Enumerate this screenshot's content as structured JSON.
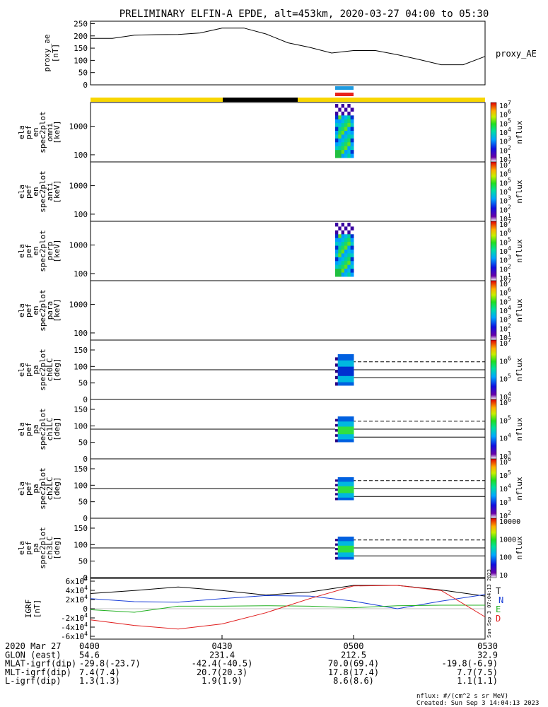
{
  "title": "PRELIMINARY ELFIN-A EPDE, alt=453km, 2020-03-27 04:00 to 05:30",
  "colors": {
    "bar_yellow": "#f8d600",
    "bar_black": "#000000",
    "bar_blue": "#1f9be0",
    "bar_red": "#e8231a",
    "bx": "#1b3fd8",
    "by": "#20b020",
    "bz": "#e01c1c",
    "btot": "#000000"
  },
  "chart_data": [
    {
      "type": "line",
      "panel": "proxy_ae",
      "ylabel": [
        "proxy_ae",
        "[nT]"
      ],
      "series": [
        {
          "name": "proxy_AE",
          "x": [
            "04:00",
            "04:05",
            "04:10",
            "04:15",
            "04:20",
            "04:25",
            "04:30",
            "04:35",
            "04:40",
            "04:45",
            "04:50",
            "04:55",
            "05:00",
            "05:05",
            "05:10",
            "05:15",
            "05:20",
            "05:25",
            "05:30"
          ],
          "values": [
            190,
            190,
            203,
            205,
            206,
            212,
            232,
            232,
            208,
            172,
            153,
            130,
            140,
            140,
            123,
            103,
            82,
            82,
            116
          ]
        }
      ],
      "yticks": [
        "250",
        "200",
        "150",
        "100",
        "50",
        "0"
      ],
      "ylim": [
        0,
        260
      ]
    },
    {
      "type": "heatmap",
      "panel": "ela_pef_en_spec2plot_omni",
      "ylabel": [
        "ela",
        "pef",
        "en",
        "spec2plot",
        "omni",
        "[keV]"
      ],
      "yticks": [
        "1000",
        "100"
      ],
      "scale": "log",
      "colorbar": {
        "label": "nflux",
        "ticks": [
          "10^7",
          "10^6",
          "10^5",
          "10^4",
          "10^3",
          "10^2",
          "10^1"
        ]
      }
    },
    {
      "type": "heatmap",
      "panel": "ela_pef_en_spec2plot_anti",
      "ylabel": [
        "ela",
        "pef",
        "en",
        "spec2plot",
        "anti",
        "[keV]"
      ],
      "yticks": [
        "1000",
        "100"
      ],
      "scale": "log",
      "colorbar": {
        "label": "nflux",
        "ticks": [
          "10^7",
          "10^6",
          "10^5",
          "10^4",
          "10^3",
          "10^2",
          "10^1"
        ]
      }
    },
    {
      "type": "heatmap",
      "panel": "ela_pef_en_spec2plot_perp",
      "ylabel": [
        "ela",
        "pef",
        "en",
        "spec2plot",
        "perp",
        "[keV]"
      ],
      "yticks": [
        "1000",
        "100"
      ],
      "scale": "log",
      "colorbar": {
        "label": "nflux",
        "ticks": [
          "10^7",
          "10^6",
          "10^5",
          "10^4",
          "10^3",
          "10^2",
          "10^1"
        ]
      }
    },
    {
      "type": "heatmap",
      "panel": "ela_pef_en_spec2plot_para",
      "ylabel": [
        "ela",
        "pef",
        "en",
        "spec2plot",
        "para",
        "[keV]"
      ],
      "yticks": [
        "1000",
        "100"
      ],
      "scale": "log",
      "colorbar": {
        "label": "nflux",
        "ticks": [
          "10^7",
          "10^6",
          "10^5",
          "10^4",
          "10^3",
          "10^2",
          "10^1"
        ]
      }
    },
    {
      "type": "heatmap",
      "panel": "ela_pef_pa_spec2plot_ch0LC",
      "ylabel": [
        "ela",
        "pef",
        "pa",
        "spec2plot",
        "ch0LC",
        "[deg]"
      ],
      "yticks": [
        "150",
        "100",
        "50",
        "0"
      ],
      "colorbar": {
        "label": "nflux",
        "ticks": [
          "10^7",
          "10^6",
          "10^5",
          "10^4"
        ]
      }
    },
    {
      "type": "heatmap",
      "panel": "ela_pef_pa_spec2plot_ch1LC",
      "ylabel": [
        "ela",
        "pef",
        "pa",
        "spec2plot",
        "ch1LC",
        "[deg]"
      ],
      "yticks": [
        "150",
        "100",
        "50",
        "0"
      ],
      "colorbar": {
        "label": "nflux",
        "ticks": [
          "10^6",
          "10^5",
          "10^4",
          "10^3"
        ]
      }
    },
    {
      "type": "heatmap",
      "panel": "ela_pef_pa_spec2plot_ch2LC",
      "ylabel": [
        "ela",
        "pef",
        "pa",
        "spec2plot",
        "ch2LC",
        "[deg]"
      ],
      "yticks": [
        "150",
        "100",
        "50",
        "0"
      ],
      "colorbar": {
        "label": "nflux",
        "ticks": [
          "10^6",
          "10^5",
          "10^4",
          "10^3",
          "10^2"
        ]
      }
    },
    {
      "type": "heatmap",
      "panel": "ela_pef_pa_spec2plot_ch3LC",
      "ylabel": [
        "ela",
        "pef",
        "pa",
        "spec2plot",
        "ch3LC",
        "[deg]"
      ],
      "yticks": [
        "150",
        "100",
        "50",
        "0"
      ],
      "colorbar": {
        "label": "nflux",
        "ticks": [
          "10000",
          "1000",
          "100",
          "10"
        ]
      }
    },
    {
      "type": "line",
      "panel": "IGRF",
      "ylabel": [
        "IGRF",
        "[nT]"
      ],
      "yticks": [
        "6x10^4",
        "4x10^4",
        "2x10^4",
        "0",
        "-2x10^4",
        "-4x10^4",
        "-6x10^4"
      ],
      "ylim": [
        -60000,
        60000
      ],
      "x": [
        "04:00",
        "04:10",
        "04:20",
        "04:30",
        "04:40",
        "04:50",
        "05:00",
        "05:10",
        "05:20",
        "05:30"
      ],
      "series": [
        {
          "name": "T",
          "values": [
            30000,
            36000,
            43000,
            36000,
            27000,
            33000,
            46000,
            46000,
            37000,
            25000
          ]
        },
        {
          "name": "N",
          "values": [
            20000,
            14000,
            13000,
            20000,
            26000,
            25000,
            15000,
            0,
            15000,
            28000
          ]
        },
        {
          "name": "E",
          "values": [
            -2000,
            -7000,
            5000,
            5000,
            6000,
            5000,
            2000,
            6000,
            7000,
            7000
          ]
        },
        {
          "name": "D",
          "values": [
            -22000,
            -33000,
            -40000,
            -30000,
            -8000,
            20000,
            45000,
            46000,
            36000,
            -16000
          ]
        }
      ],
      "legend": [
        "T",
        "N",
        "E",
        "D"
      ],
      "side_note": "Sun Sep  3 07:04:13 2023"
    }
  ],
  "xaxis": {
    "tick_labels": [
      "0400",
      "0430",
      "0500",
      "0530"
    ],
    "rows": [
      {
        "name": "2020 Mar 27",
        "values": [
          "0400",
          "0430",
          "0500",
          "0530"
        ]
      },
      {
        "name": "GLON (east)",
        "values": [
          "54.6",
          "231.4",
          "212.5",
          "32.9"
        ]
      },
      {
        "name": "MLAT-igrf(dip)",
        "values": [
          "-29.8(-23.7)",
          "-42.4(-40.5)",
          "70.0(69.4)",
          "-19.8(-6.9)"
        ]
      },
      {
        "name": "MLT-igrf(dip)",
        "values": [
          "7.4(7.4)",
          "20.7(20.3)",
          "17.8(17.4)",
          "7.7(7.5)"
        ]
      },
      {
        "name": "L-igrf(dip)",
        "values": [
          "1.3(1.3)",
          "1.9(1.9)",
          "8.6(8.6)",
          "1.1(1.1)"
        ]
      }
    ]
  },
  "footer": {
    "units": "nflux: #/(cm^2 s sr MeV)",
    "created": "Created: Sun Sep  3 14:04:13 2023"
  }
}
